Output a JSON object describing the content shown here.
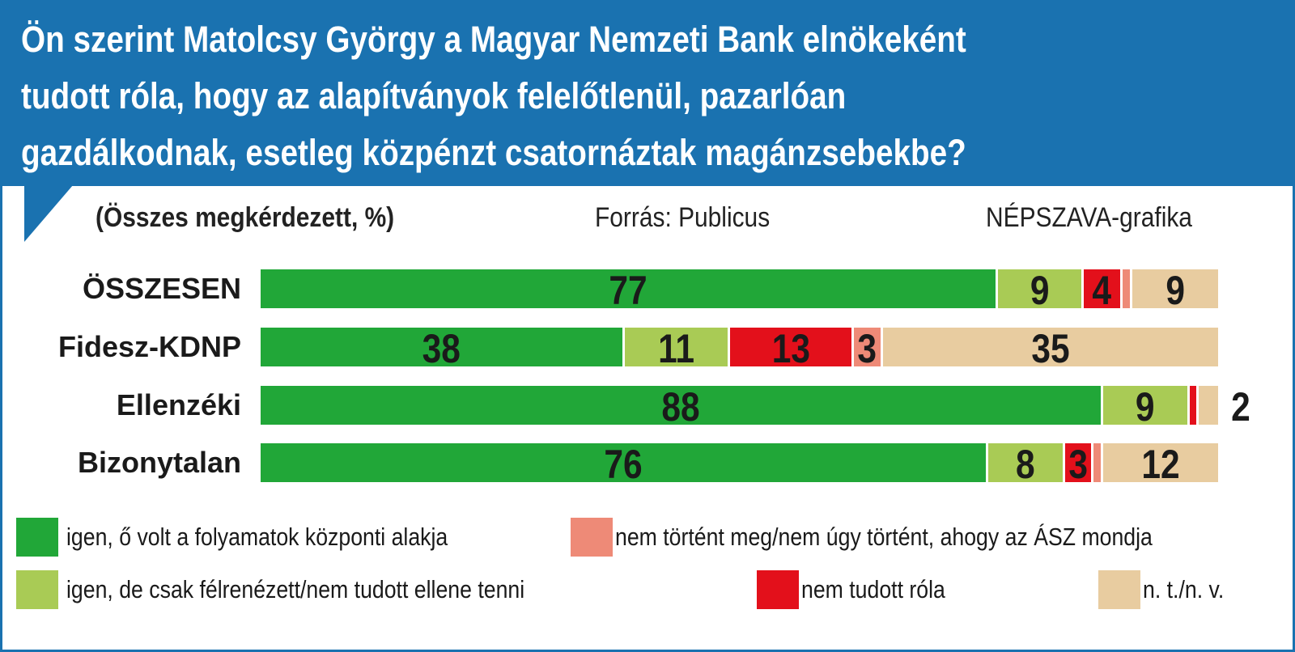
{
  "chart_data": {
    "type": "bar",
    "orientation": "horizontal-stacked-100",
    "title_lines": [
      "Ön szerint Matolcsy György a Magyar Nemzeti Bank elnökeként",
      "tudott róla, hogy az alapítványok felelőtlenül, pazarlóan",
      "gazdálkodnak, esetleg közpénzt csatornáztak magánzsebekbe?"
    ],
    "subtitle": "(Összes megkérdezett, %)",
    "source": "Forrás: Publicus",
    "credit": "NÉPSZAVA-grafika",
    "categories": [
      "ÖSSZESEN",
      "Fidesz-KDNP",
      "Ellenzéki",
      "Bizonytalan"
    ],
    "series": [
      {
        "name": "igen, ő volt a folyamatok központi alakja",
        "color": "#21a738",
        "values": [
          77,
          38,
          88,
          76
        ],
        "labels": [
          "77",
          "38",
          "88",
          "76"
        ]
      },
      {
        "name": "igen, de csak félrenézett/nem tudott ellene tenni",
        "color": "#a9cb55",
        "values": [
          9,
          11,
          9,
          8
        ],
        "labels": [
          "9",
          "11",
          "9",
          "8"
        ]
      },
      {
        "name": "nem tudott róla",
        "color": "#e3101b",
        "values": [
          4,
          13,
          1,
          3
        ],
        "labels": [
          "4",
          "13",
          null,
          "3"
        ]
      },
      {
        "name": "nem történt meg/nem úgy történt, ahogy az ÁSZ mondja",
        "color": "#ee8a77",
        "values": [
          1,
          3,
          0,
          1
        ],
        "labels": [
          null,
          "3",
          null,
          null
        ]
      },
      {
        "name": "n. t./n. v.",
        "color": "#e8cca0",
        "values": [
          9,
          35,
          2,
          12
        ],
        "labels": [
          "9",
          "35",
          "2",
          "12"
        ]
      }
    ],
    "xlim": [
      0,
      100
    ],
    "legend_position": "bottom"
  }
}
